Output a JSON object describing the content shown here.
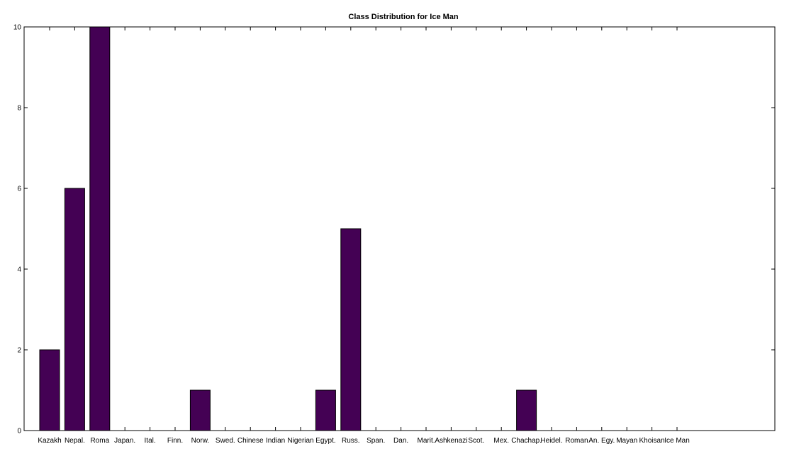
{
  "chart_data": {
    "type": "bar",
    "title": "Class Distribution for Ice Man",
    "xlabel": "",
    "ylabel": "",
    "ylim": [
      0,
      10
    ],
    "yticks": [
      0,
      2,
      4,
      6,
      8,
      10
    ],
    "grid": false,
    "categories": [
      "Kazakh",
      "Nepal.",
      "Roma",
      "Japan.",
      "Ital.",
      "Finn.",
      "Norw.",
      "Swed.",
      "Chinese",
      "Indian",
      "Nigerian",
      "Egypt.",
      "Russ.",
      "Span.",
      "Dan.",
      "Marit.",
      "Ashkenazi",
      "Scot.",
      "Mex.",
      "Chachap.",
      "Heidel.",
      "Roman",
      "An. Egy.",
      "Mayan",
      "Khoisan",
      "Ice Man"
    ],
    "values": [
      2,
      6,
      10,
      0,
      0,
      0,
      1,
      0,
      0,
      0,
      0,
      1,
      5,
      0,
      0,
      0,
      0,
      0,
      0,
      1,
      0,
      0,
      0,
      0,
      0,
      0
    ],
    "x_slots": 29,
    "bar_color": "#440154"
  }
}
